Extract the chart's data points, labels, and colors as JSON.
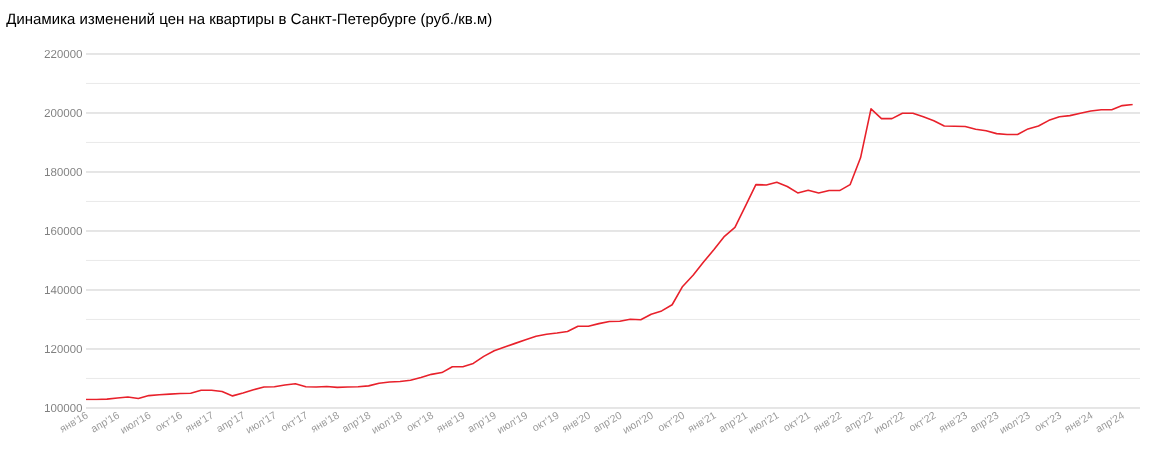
{
  "chart_data": {
    "type": "line",
    "title": "Динамика изменений цен на квартиры в Санкт-Петербурге (руб./кв.м)",
    "categories": [
      "янв'16",
      null,
      null,
      "апр'16",
      null,
      null,
      "июл'16",
      null,
      null,
      "окт'16",
      null,
      null,
      "янв'17",
      null,
      null,
      "апр'17",
      null,
      null,
      "июл'17",
      null,
      null,
      "окт'17",
      null,
      null,
      "янв'18",
      null,
      null,
      "апр'18",
      null,
      null,
      "июл'18",
      null,
      null,
      "окт'18",
      null,
      null,
      "янв'19",
      null,
      null,
      "апр'19",
      null,
      null,
      "июл'19",
      null,
      null,
      "окт'19",
      null,
      null,
      "янв'20",
      null,
      null,
      "апр'20",
      null,
      null,
      "июл'20",
      null,
      null,
      "окт'20",
      null,
      null,
      "янв'21",
      null,
      null,
      "апр'21",
      null,
      null,
      "июл'21",
      null,
      null,
      "окт'21",
      null,
      null,
      "янв'22",
      null,
      null,
      "апр'22",
      null,
      null,
      "июл'22",
      null,
      null,
      "окт'22",
      null,
      null,
      "янв'23",
      null,
      null,
      "апр'23",
      null,
      null,
      "июл'23",
      null,
      null,
      "окт'23",
      null,
      null,
      "янв'24",
      null,
      null,
      "апр'24",
      null
    ],
    "values": [
      102900,
      102900,
      103000,
      103400,
      103700,
      103200,
      104200,
      104500,
      104700,
      104900,
      105000,
      106000,
      106000,
      105600,
      104100,
      105100,
      106200,
      107100,
      107200,
      107800,
      108200,
      107200,
      107100,
      107300,
      107000,
      107100,
      107200,
      107500,
      108400,
      108800,
      109000,
      109400,
      110300,
      111400,
      112000,
      114000,
      114000,
      115100,
      117500,
      119400,
      120700,
      121900,
      123100,
      124300,
      125000,
      125400,
      125900,
      127700,
      127700,
      128600,
      129300,
      129400,
      130100,
      129900,
      131800,
      132900,
      135000,
      141200,
      145000,
      149500,
      153700,
      158200,
      161200,
      168400,
      175700,
      175600,
      176500,
      175100,
      172900,
      173800,
      172900,
      173700,
      173700,
      175700,
      184800,
      201400,
      198100,
      198100,
      199900,
      199900,
      198700,
      197400,
      195600,
      195500,
      195400,
      194500,
      194000,
      193000,
      192700,
      192700,
      194600,
      195600,
      197500,
      198700,
      199100,
      199900,
      200700,
      201100,
      201100,
      202500,
      202900
    ],
    "color": "#e8212b",
    "ylim": [
      100000,
      220000
    ],
    "yticks": [
      100000,
      {
        "value": 110000,
        "label": null
      },
      120000,
      {
        "value": 130000,
        "label": null
      },
      140000,
      {
        "value": 150000,
        "label": null
      },
      160000,
      {
        "value": 170000,
        "label": null
      },
      180000,
      {
        "value": 190000,
        "label": null
      },
      200000,
      {
        "value": 210000,
        "label": null
      },
      220000
    ],
    "grid": "y"
  }
}
